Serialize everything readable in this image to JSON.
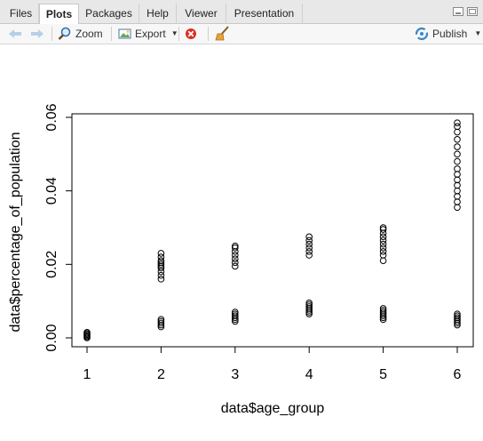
{
  "tabs": [
    {
      "label": "Files"
    },
    {
      "label": "Plots"
    },
    {
      "label": "Packages"
    },
    {
      "label": "Help"
    },
    {
      "label": "Viewer"
    },
    {
      "label": "Presentation"
    }
  ],
  "toolbar": {
    "zoom_label": "Zoom",
    "export_label": "Export",
    "publish_label": "Publish"
  },
  "chart_data": {
    "type": "scatter",
    "xlabel": "data$age_group",
    "ylabel": "data$percentage_of_population",
    "xlim": [
      1,
      6
    ],
    "ylim": [
      0,
      0.06
    ],
    "x_ticks": [
      "1",
      "2",
      "3",
      "4",
      "5",
      "6"
    ],
    "y_ticks": [
      "0.00",
      "0.02",
      "0.04",
      "0.06"
    ],
    "grid": false,
    "marker": "open-circle",
    "points": [
      {
        "x": 1,
        "y": 0.0
      },
      {
        "x": 1,
        "y": 0.0003
      },
      {
        "x": 1,
        "y": 0.0006
      },
      {
        "x": 1,
        "y": 0.0009
      },
      {
        "x": 1,
        "y": 0.0012
      },
      {
        "x": 1,
        "y": 0.0015
      },
      {
        "x": 2,
        "y": 0.003
      },
      {
        "x": 2,
        "y": 0.0035
      },
      {
        "x": 2,
        "y": 0.004
      },
      {
        "x": 2,
        "y": 0.0045
      },
      {
        "x": 2,
        "y": 0.005
      },
      {
        "x": 2,
        "y": 0.016
      },
      {
        "x": 2,
        "y": 0.017
      },
      {
        "x": 2,
        "y": 0.018
      },
      {
        "x": 2,
        "y": 0.019
      },
      {
        "x": 2,
        "y": 0.0195
      },
      {
        "x": 2,
        "y": 0.02
      },
      {
        "x": 2,
        "y": 0.0205
      },
      {
        "x": 2,
        "y": 0.021
      },
      {
        "x": 2,
        "y": 0.022
      },
      {
        "x": 2,
        "y": 0.023
      },
      {
        "x": 3,
        "y": 0.0045
      },
      {
        "x": 3,
        "y": 0.005
      },
      {
        "x": 3,
        "y": 0.0055
      },
      {
        "x": 3,
        "y": 0.006
      },
      {
        "x": 3,
        "y": 0.0065
      },
      {
        "x": 3,
        "y": 0.007
      },
      {
        "x": 3,
        "y": 0.0195
      },
      {
        "x": 3,
        "y": 0.0205
      },
      {
        "x": 3,
        "y": 0.0215
      },
      {
        "x": 3,
        "y": 0.0225
      },
      {
        "x": 3,
        "y": 0.0235
      },
      {
        "x": 3,
        "y": 0.0245
      },
      {
        "x": 3,
        "y": 0.025
      },
      {
        "x": 4,
        "y": 0.0065
      },
      {
        "x": 4,
        "y": 0.007
      },
      {
        "x": 4,
        "y": 0.0075
      },
      {
        "x": 4,
        "y": 0.008
      },
      {
        "x": 4,
        "y": 0.0085
      },
      {
        "x": 4,
        "y": 0.009
      },
      {
        "x": 4,
        "y": 0.0095
      },
      {
        "x": 4,
        "y": 0.0225
      },
      {
        "x": 4,
        "y": 0.0235
      },
      {
        "x": 4,
        "y": 0.0245
      },
      {
        "x": 4,
        "y": 0.0255
      },
      {
        "x": 4,
        "y": 0.0265
      },
      {
        "x": 4,
        "y": 0.0275
      },
      {
        "x": 5,
        "y": 0.005
      },
      {
        "x": 5,
        "y": 0.0055
      },
      {
        "x": 5,
        "y": 0.006
      },
      {
        "x": 5,
        "y": 0.0065
      },
      {
        "x": 5,
        "y": 0.007
      },
      {
        "x": 5,
        "y": 0.0075
      },
      {
        "x": 5,
        "y": 0.008
      },
      {
        "x": 5,
        "y": 0.021
      },
      {
        "x": 5,
        "y": 0.0225
      },
      {
        "x": 5,
        "y": 0.0235
      },
      {
        "x": 5,
        "y": 0.0245
      },
      {
        "x": 5,
        "y": 0.0255
      },
      {
        "x": 5,
        "y": 0.0265
      },
      {
        "x": 5,
        "y": 0.0275
      },
      {
        "x": 5,
        "y": 0.0285
      },
      {
        "x": 5,
        "y": 0.0295
      },
      {
        "x": 5,
        "y": 0.03
      },
      {
        "x": 6,
        "y": 0.0035
      },
      {
        "x": 6,
        "y": 0.004
      },
      {
        "x": 6,
        "y": 0.0045
      },
      {
        "x": 6,
        "y": 0.005
      },
      {
        "x": 6,
        "y": 0.0055
      },
      {
        "x": 6,
        "y": 0.006
      },
      {
        "x": 6,
        "y": 0.0065
      },
      {
        "x": 6,
        "y": 0.0355
      },
      {
        "x": 6,
        "y": 0.037
      },
      {
        "x": 6,
        "y": 0.0385
      },
      {
        "x": 6,
        "y": 0.04
      },
      {
        "x": 6,
        "y": 0.0415
      },
      {
        "x": 6,
        "y": 0.043
      },
      {
        "x": 6,
        "y": 0.0445
      },
      {
        "x": 6,
        "y": 0.046
      },
      {
        "x": 6,
        "y": 0.048
      },
      {
        "x": 6,
        "y": 0.05
      },
      {
        "x": 6,
        "y": 0.052
      },
      {
        "x": 6,
        "y": 0.054
      },
      {
        "x": 6,
        "y": 0.056
      },
      {
        "x": 6,
        "y": 0.0575
      },
      {
        "x": 6,
        "y": 0.0585
      }
    ]
  }
}
